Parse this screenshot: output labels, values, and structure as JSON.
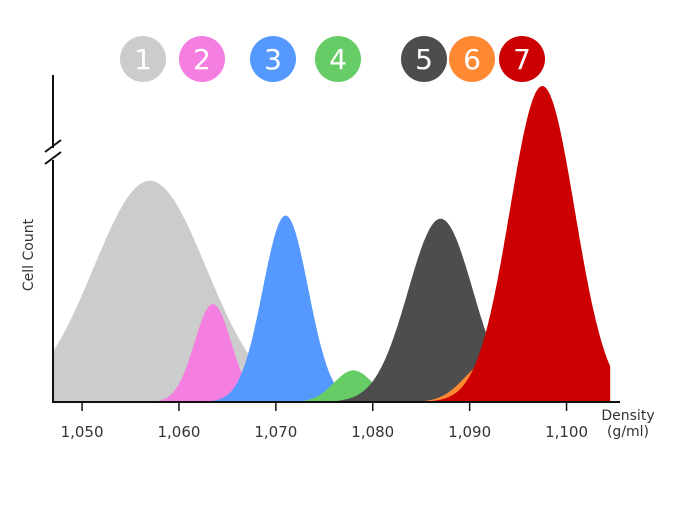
{
  "chart_data": {
    "type": "area",
    "xlabel": "Density",
    "xunit": "(g/ml)",
    "ylabel": "Cell Count",
    "xlim": [
      1047,
      1105
    ],
    "x_ticks": [
      1050,
      1060,
      1070,
      1080,
      1090,
      1100
    ],
    "x_tick_labels": [
      "1,050",
      "1,060",
      "1,070",
      "1,080",
      "1,090",
      "1,100"
    ],
    "y_axis_break": true,
    "grid": false,
    "legend": "top",
    "series": [
      {
        "name": "1",
        "color": "#cccccc",
        "peak_density": 1057,
        "relative_height": 0.7,
        "spread": 5.2
      },
      {
        "name": "2",
        "color": "#f47fe0",
        "peak_density": 1063.5,
        "relative_height": 0.31,
        "spread": 1.7
      },
      {
        "name": "3",
        "color": "#5599ff",
        "peak_density": 1071,
        "relative_height": 0.59,
        "spread": 2.1
      },
      {
        "name": "4",
        "color": "#66cc66",
        "peak_density": 1078,
        "relative_height": 0.1,
        "spread": 1.8
      },
      {
        "name": "5",
        "color": "#4d4d4d",
        "peak_density": 1087,
        "relative_height": 0.58,
        "spread": 3.0
      },
      {
        "name": "6",
        "color": "#ff8833",
        "peak_density": 1092,
        "relative_height": 0.13,
        "spread": 2.2
      },
      {
        "name": "7",
        "color": "#cc0000",
        "peak_density": 1097.5,
        "relative_height": 1.0,
        "spread": 3.0
      }
    ]
  }
}
